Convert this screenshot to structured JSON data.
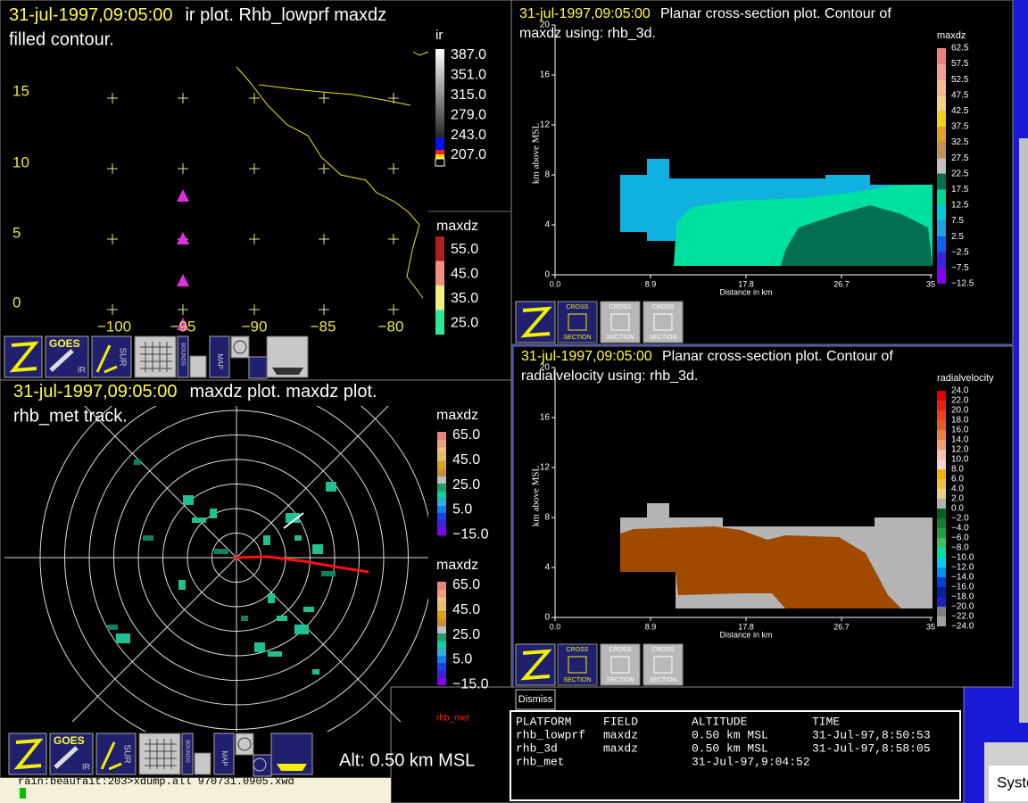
{
  "ir_plot": {
    "timestamp": "31-jul-1997,09:05:00",
    "title": "ir plot.  Rhb_lowprf maxdz",
    "title_line2": "filled contour.",
    "y_labels": [
      "15",
      "10",
      "5",
      "0"
    ],
    "x_labels": [
      "−100",
      "−95",
      "−90",
      "−85",
      "−80"
    ],
    "ir_legend": {
      "title": "ir",
      "labels": [
        "387.0",
        "351.0",
        "315.0",
        "279.0",
        "243.0",
        "207.0"
      ]
    },
    "maxdz_legend": {
      "title": "maxdz",
      "labels": [
        "55.0",
        "45.0",
        "35.0",
        "25.0"
      ]
    },
    "toolbar": {
      "goes": "GOES",
      "ir": "IR",
      "sur": "SUR",
      "bounds": "BOUNDS",
      "map": "MAP"
    }
  },
  "maxdz_plot": {
    "timestamp": "31-jul-1997,09:05:00",
    "title": "maxdz plot.  maxdz plot.",
    "title_line2": "rhb_met track.",
    "legend_top": {
      "title": "maxdz",
      "labels": [
        "65.0",
        "45.0",
        "25.0",
        "5.0",
        "−15.0"
      ]
    },
    "legend_bottom": {
      "title": "maxdz",
      "labels": [
        "65.0",
        "45.0",
        "25.0",
        "5.0",
        "−15.0"
      ]
    },
    "track_label": "rhb_met",
    "altitude": "Alt: 0.50 km MSL",
    "toolbar": {
      "goes": "GOES",
      "ir": "IR",
      "sur": "SUR",
      "bounds": "BOUNDS",
      "map": "MAP"
    }
  },
  "cross_section_maxdz": {
    "timestamp": "31-jul-1997,09:05:00",
    "title": "Planar cross-section plot.  Contour of",
    "title_line2": "maxdz using: rhb_3d.",
    "y_label": "km above MSL",
    "x_label": "Distance in km",
    "y_ticks": [
      "0",
      "4",
      "8",
      "12",
      "16",
      "20"
    ],
    "x_ticks": [
      "0.0",
      "8.9",
      "17.8",
      "26.7",
      "35"
    ],
    "legend": {
      "title": "maxdz",
      "labels": [
        "62.5",
        "57.5",
        "52.5",
        "47.5",
        "42.5",
        "37.5",
        "32.5",
        "27.5",
        "22.5",
        "17.5",
        "12.5",
        "7.5",
        "2.5",
        "−2.5",
        "−7.5",
        "−12.5"
      ]
    },
    "toolbar": {
      "cross": "CROSS",
      "section": "SECTION"
    }
  },
  "cross_section_velocity": {
    "timestamp": "31-jul-1997,09:05:00",
    "title": "Planar cross-section plot.  Contour of",
    "title_line2": "radialvelocity using: rhb_3d.",
    "y_label": "km above MSL",
    "x_label": "Distance in km",
    "y_ticks": [
      "0",
      "4",
      "8",
      "12",
      "16",
      "20"
    ],
    "x_ticks": [
      "0.0",
      "8.9",
      "17.8",
      "26.7",
      "35"
    ],
    "legend": {
      "title": "radialvelocity",
      "labels": [
        "24.0",
        "22.0",
        "20.0",
        "18.0",
        "16.0",
        "14.0",
        "12.0",
        "10.0",
        "8.0",
        "6.0",
        "4.0",
        "2.0",
        "0.0",
        "−2.0",
        "−4.0",
        "−6.0",
        "−8.0",
        "−10.0",
        "−12.0",
        "−14.0",
        "−16.0",
        "−18.0",
        "−20.0",
        "−22.0",
        "−24.0"
      ]
    },
    "toolbar": {
      "cross": "CROSS",
      "section": "SECTION"
    }
  },
  "dismiss_button": "Dismiss",
  "info_table": {
    "headers": [
      "PLATFORM",
      "FIELD",
      "ALTITUDE",
      "TIME"
    ],
    "rows": [
      {
        "platform": "rhb_lowprf",
        "field": "maxdz",
        "altitude": "0.50 km MSL",
        "time": "31-Jul-97,8:50:53"
      },
      {
        "platform": "rhb_3d",
        "field": "maxdz",
        "altitude": "0.50 km MSL",
        "time": "31-Jul-97,8:58:05"
      },
      {
        "platform": "rhb_met",
        "altitude": "31-Jul-97,9:04:52"
      }
    ]
  },
  "terminal": "rain:beaufait:203>xdump.all 970731.0905.xwd",
  "system_window": "Syste"
}
